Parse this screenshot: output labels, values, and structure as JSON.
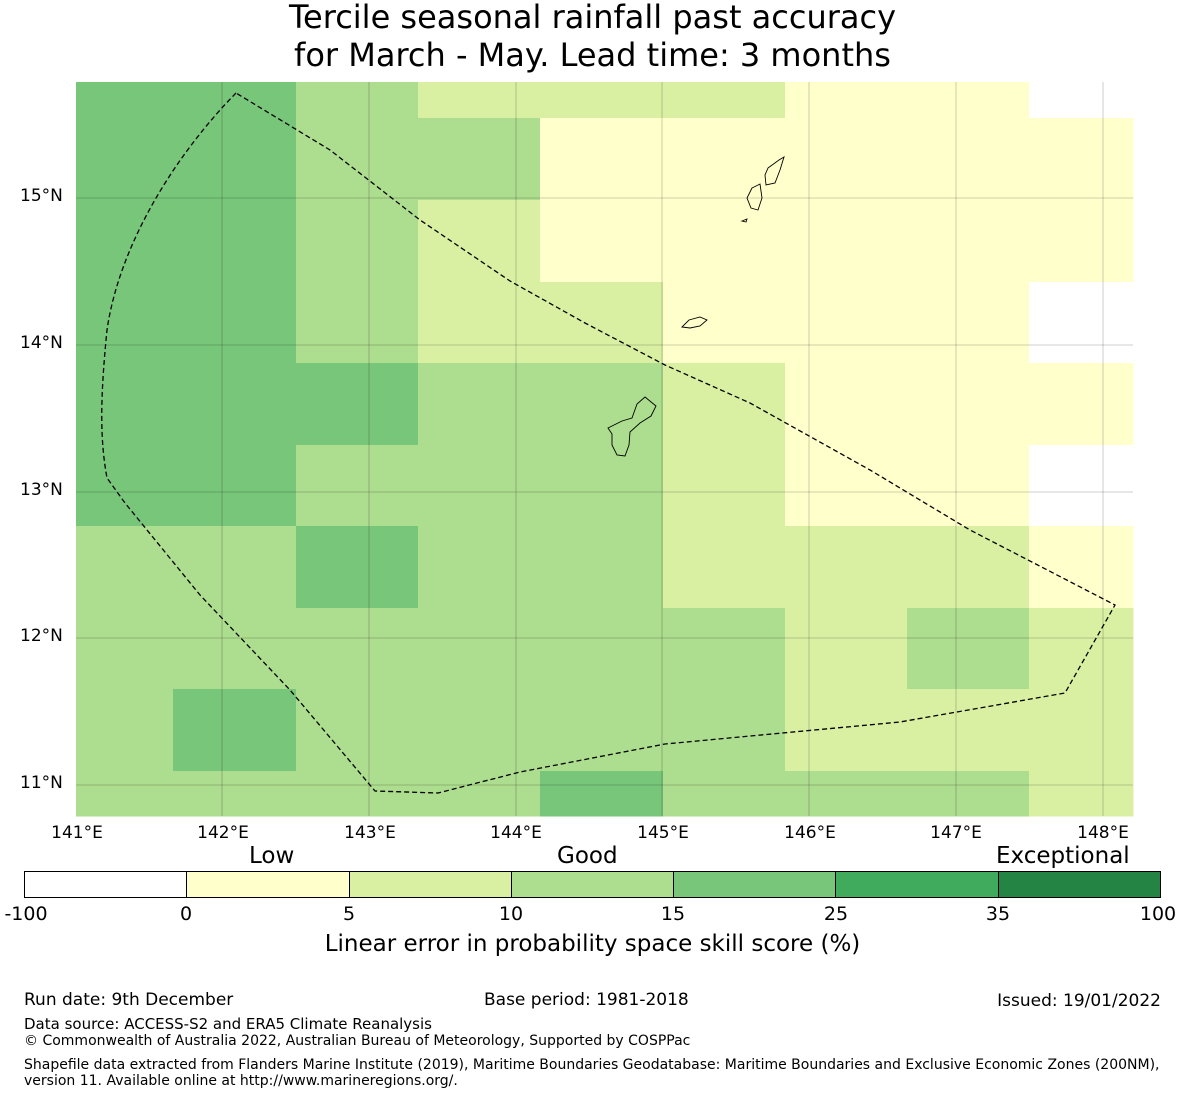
{
  "title": {
    "line1": "Tercile seasonal rainfall past accuracy",
    "line2": "for March - May. Lead time: 3 months"
  },
  "map": {
    "lat_labels": [
      "15°N",
      "14°N",
      "13°N",
      "12°N",
      "11°N"
    ],
    "lon_labels": [
      "141°E",
      "142°E",
      "143°E",
      "144°E",
      "145°E",
      "146°E",
      "147°E",
      "148°E"
    ],
    "colors": {
      "c0": "#ffffcc",
      "c1": "#d9f0a3",
      "c2": "#addd8e",
      "c3": "#78c679",
      "c4": "#41ab5d",
      "c5": "#238443",
      "missing": "#ffffff"
    },
    "grid_classes": [
      [
        "c3",
        "c3",
        "c2",
        "c1",
        "c1",
        "c1",
        "c0",
        "c0",
        "missing"
      ],
      [
        "c3",
        "c3",
        "c2",
        "c2",
        "c0",
        "c0",
        "c0",
        "c0",
        "c0"
      ],
      [
        "c3",
        "c3",
        "c2",
        "c1",
        "c0",
        "c0",
        "c0",
        "c0",
        "c0"
      ],
      [
        "c3",
        "c3",
        "c2",
        "c1",
        "c1",
        "c0",
        "c0",
        "c0",
        "missing"
      ],
      [
        "c3",
        "c3",
        "c3",
        "c2",
        "c2",
        "c1",
        "c0",
        "c0",
        "c0"
      ],
      [
        "c3",
        "c3",
        "c2",
        "c2",
        "c2",
        "c1",
        "c0",
        "c0",
        "missing"
      ],
      [
        "c2",
        "c2",
        "c3",
        "c2",
        "c2",
        "c1",
        "c1",
        "c1",
        "c0"
      ],
      [
        "c2",
        "c2",
        "c2",
        "c2",
        "c2",
        "c2",
        "c1",
        "c2",
        "c1"
      ],
      [
        "c2",
        "c3",
        "c2",
        "c2",
        "c2",
        "c2",
        "c1",
        "c1",
        "c1"
      ],
      [
        "c2",
        "c2",
        "c2",
        "c2",
        "c3",
        "c2",
        "c2",
        "c2",
        "c1"
      ]
    ]
  },
  "colorbar": {
    "words": [
      "Low",
      "Good",
      "Exceptional"
    ],
    "ticks": [
      "-100",
      "0",
      "5",
      "10",
      "15",
      "25",
      "35",
      "100"
    ],
    "colors": [
      "#ffffff",
      "#ffffcc",
      "#d9f0a3",
      "#addd8e",
      "#78c679",
      "#41ab5d",
      "#238443"
    ],
    "label": "Linear error in probability space skill score (%)"
  },
  "footer": {
    "run_date": "Run date: 9th December",
    "base_period": "Base period: 1981-2018",
    "issued": "Issued: 19/01/2022",
    "data_source": "Data source: ACCESS-S2 and ERA5 Climate Reanalysis",
    "copyright": "© Commonwealth of Australia 2022, Australian Bureau of Meteorology, Supported by COSPPac",
    "shapefile": "Shapefile data extracted from Flanders Marine Institute (2019), Maritime Boundaries Geodatabase: Maritime Boundaries and Exclusive Economic Zones (200NM), version 11. Available online at http://www.marineregions.org/."
  }
}
